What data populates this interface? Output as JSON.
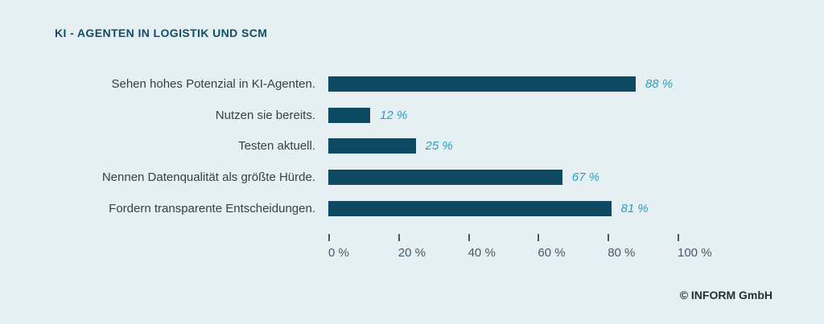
{
  "title": "KI - AGENTEN IN LOGISTIK UND SCM",
  "chart_data": {
    "type": "bar",
    "orientation": "horizontal",
    "title": "KI - AGENTEN IN LOGISTIK UND SCM",
    "categories": [
      "Sehen hohes Potenzial in KI-Agenten.",
      "Nutzen sie bereits.",
      "Testen aktuell.",
      "Nennen Datenqualität als größte Hürde.",
      "Fordern transparente Entscheidungen."
    ],
    "values": [
      88,
      12,
      25,
      67,
      81
    ],
    "value_labels": [
      "88 %",
      "12 %",
      "25 %",
      "67 %",
      "81 %"
    ],
    "xlim": [
      0,
      100
    ],
    "x_ticks": [
      {
        "value": 0,
        "label": "0 %"
      },
      {
        "value": 20,
        "label": "20 %"
      },
      {
        "value": 40,
        "label": "40 %"
      },
      {
        "value": 60,
        "label": "60 %"
      },
      {
        "value": 80,
        "label": "80 %"
      },
      {
        "value": 100,
        "label": "100 %"
      }
    ],
    "grid": false,
    "legend": false,
    "colors": {
      "background": "#e6f0f2",
      "bar": "#0d4a61",
      "title": "#0e4e6b",
      "category_label": "#333f49",
      "value_label": "#29a0c2",
      "axis": "#44596b",
      "copyright": "#243039"
    }
  },
  "footer": {
    "copyright": "© INFORM GmbH"
  }
}
